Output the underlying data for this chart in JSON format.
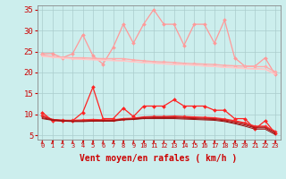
{
  "bg_color": "#cceeed",
  "grid_color": "#aacccc",
  "xlabel": "Vent moyen/en rafales ( km/h )",
  "xlim": [
    -0.5,
    23.5
  ],
  "ylim": [
    4,
    36
  ],
  "yticks": [
    5,
    10,
    15,
    20,
    25,
    30,
    35
  ],
  "xticks": [
    0,
    1,
    2,
    3,
    4,
    5,
    6,
    7,
    8,
    9,
    10,
    11,
    12,
    13,
    14,
    15,
    16,
    17,
    18,
    19,
    20,
    21,
    22,
    23
  ],
  "series": [
    {
      "label": "rafales_spiky",
      "color": "#ff9999",
      "lw": 0.9,
      "marker": "D",
      "ms": 2.0,
      "y": [
        24.5,
        24.5,
        23.5,
        24.5,
        29.0,
        24.0,
        22.0,
        26.0,
        31.5,
        27.0,
        31.5,
        35.0,
        31.5,
        31.5,
        26.5,
        31.5,
        31.5,
        27.0,
        32.5,
        23.5,
        21.5,
        21.5,
        23.5,
        19.5
      ]
    },
    {
      "label": "rafales_smooth1",
      "color": "#ffaaaa",
      "lw": 1.0,
      "marker": "D",
      "ms": 1.8,
      "y": [
        24.2,
        23.8,
        23.6,
        23.5,
        23.5,
        23.4,
        23.3,
        23.3,
        23.3,
        23.0,
        22.8,
        22.6,
        22.5,
        22.4,
        22.2,
        22.1,
        22.0,
        21.9,
        21.7,
        21.6,
        21.5,
        21.4,
        21.4,
        20.2
      ]
    },
    {
      "label": "rafales_smooth2",
      "color": "#ffbbbb",
      "lw": 0.9,
      "marker": null,
      "ms": 0,
      "y": [
        24.0,
        23.7,
        23.5,
        23.3,
        23.2,
        23.1,
        23.0,
        22.9,
        22.8,
        22.6,
        22.4,
        22.3,
        22.1,
        22.0,
        21.9,
        21.8,
        21.6,
        21.5,
        21.3,
        21.2,
        21.0,
        20.9,
        20.8,
        19.8
      ]
    },
    {
      "label": "rafales_smooth3",
      "color": "#ffcccc",
      "lw": 0.8,
      "marker": null,
      "ms": 0,
      "y": [
        23.8,
        23.6,
        23.4,
        23.2,
        23.1,
        23.0,
        22.9,
        22.8,
        22.7,
        22.5,
        22.3,
        22.2,
        22.0,
        21.9,
        21.8,
        21.7,
        21.5,
        21.4,
        21.2,
        21.1,
        20.9,
        20.8,
        20.7,
        19.5
      ]
    },
    {
      "label": "wind_spiky",
      "color": "#ff2222",
      "lw": 0.9,
      "marker": "D",
      "ms": 2.0,
      "y": [
        10.5,
        8.5,
        8.5,
        8.5,
        10.5,
        16.5,
        9.0,
        9.0,
        11.5,
        9.5,
        12.0,
        12.0,
        12.0,
        13.5,
        12.0,
        12.0,
        12.0,
        11.0,
        11.0,
        9.0,
        9.0,
        6.5,
        8.5,
        5.5
      ]
    },
    {
      "label": "wind_smooth1",
      "color": "#ff3333",
      "lw": 1.0,
      "marker": "D",
      "ms": 1.8,
      "y": [
        9.8,
        8.8,
        8.6,
        8.6,
        8.7,
        8.8,
        8.7,
        8.7,
        9.0,
        9.1,
        9.4,
        9.5,
        9.5,
        9.6,
        9.5,
        9.4,
        9.3,
        9.2,
        8.9,
        8.5,
        8.0,
        7.2,
        7.2,
        6.0
      ]
    },
    {
      "label": "wind_smooth2",
      "color": "#cc2222",
      "lw": 0.9,
      "marker": null,
      "ms": 0,
      "y": [
        9.5,
        8.8,
        8.6,
        8.5,
        8.5,
        8.6,
        8.6,
        8.6,
        8.9,
        9.0,
        9.3,
        9.4,
        9.4,
        9.4,
        9.3,
        9.2,
        9.1,
        9.0,
        8.7,
        8.3,
        7.8,
        7.0,
        7.0,
        5.8
      ]
    },
    {
      "label": "wind_smooth3",
      "color": "#aa1111",
      "lw": 0.8,
      "marker": null,
      "ms": 0,
      "y": [
        9.2,
        8.7,
        8.5,
        8.4,
        8.4,
        8.5,
        8.5,
        8.5,
        8.8,
        8.9,
        9.1,
        9.2,
        9.2,
        9.2,
        9.1,
        9.0,
        8.9,
        8.8,
        8.5,
        8.0,
        7.5,
        6.8,
        6.8,
        5.5
      ]
    },
    {
      "label": "wind_smooth4",
      "color": "#991111",
      "lw": 0.7,
      "marker": null,
      "ms": 0,
      "y": [
        9.0,
        8.6,
        8.4,
        8.3,
        8.3,
        8.4,
        8.4,
        8.4,
        8.7,
        8.8,
        9.0,
        9.0,
        9.0,
        9.0,
        8.9,
        8.8,
        8.7,
        8.6,
        8.3,
        7.8,
        7.2,
        6.5,
        6.5,
        5.2
      ]
    }
  ],
  "arrow_color": "#cc2222",
  "label_color": "#cc0000",
  "tick_color": "#cc0000",
  "font_size_xlabel": 7,
  "font_size_ytick": 6.5,
  "font_size_xtick": 5.0
}
